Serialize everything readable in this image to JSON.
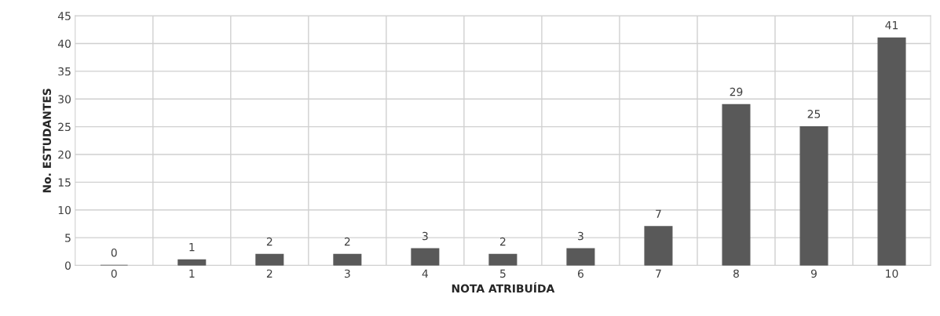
{
  "chart_data": {
    "type": "bar",
    "xlabel": "NOTA ATRIBUÍDA",
    "ylabel": "No. ESTUDANTES",
    "categories": [
      "0",
      "1",
      "2",
      "3",
      "4",
      "5",
      "6",
      "7",
      "8",
      "9",
      "10"
    ],
    "values": [
      0,
      1,
      2,
      2,
      3,
      2,
      3,
      7,
      29,
      25,
      41
    ],
    "color": "#595959",
    "ylim": [
      0,
      45
    ],
    "yticks": [
      0,
      5,
      10,
      15,
      20,
      25,
      30,
      35,
      40,
      45
    ],
    "grid": true,
    "data_labels": true
  }
}
